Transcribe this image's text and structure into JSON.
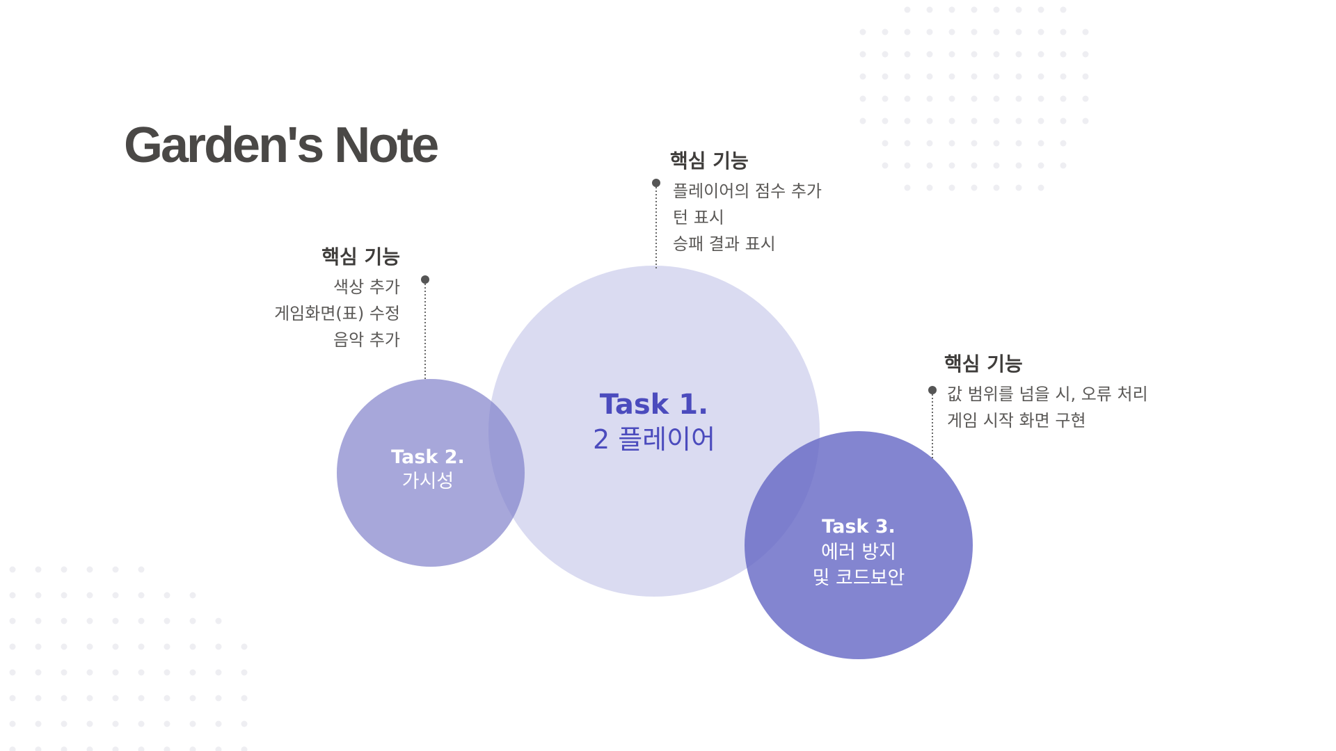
{
  "title": "Garden's Note",
  "tasks": [
    {
      "title": "Task 1.",
      "subtitle": "2 플레이어"
    },
    {
      "title": "Task 2.",
      "subtitle": "가시성"
    },
    {
      "title": "Task 3.",
      "subtitle_lines": [
        "에러 방지",
        "및 코드보안"
      ]
    }
  ],
  "features": {
    "task1": {
      "heading": "핵심 기능",
      "items": [
        "플레이어의 점수 추가",
        "턴 표시",
        "승패 결과 표시"
      ]
    },
    "task2": {
      "heading": "핵심 기능",
      "items": [
        "색상 추가",
        "게임화면(표) 수정",
        "음악 추가"
      ]
    },
    "task3": {
      "heading": "핵심 기능",
      "items": [
        "값 범위를 넘을 시, 오류 처리",
        "게임 시작 화면 구현"
      ]
    }
  },
  "colors": {
    "title": "#4a4846",
    "task1_circle": "#dcdcf1",
    "task2_circle": "#a8a8dc",
    "task3_circle": "#8081cf",
    "task1_text": "#4b4bbd",
    "dots": "#eeeef2",
    "connector": "#555555"
  },
  "icons": {
    "connector_dot": "bullet-dot"
  }
}
